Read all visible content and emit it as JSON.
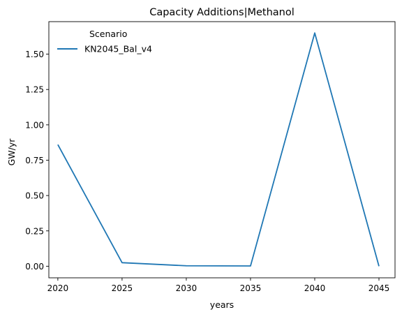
{
  "chart_data": {
    "type": "line",
    "title": "Capacity Additions|Methanol",
    "xlabel": "years",
    "ylabel": "GW/yr",
    "x": [
      2020,
      2025,
      2030,
      2035,
      2040,
      2045
    ],
    "xlim": [
      2019.3,
      2046.25
    ],
    "ylim": [
      -0.082,
      1.73
    ],
    "x_ticks": [
      "2020",
      "2025",
      "2030",
      "2035",
      "2040",
      "2045"
    ],
    "y_ticks": [
      "0.00",
      "0.25",
      "0.50",
      "0.75",
      "1.00",
      "1.25",
      "1.50"
    ],
    "grid": false,
    "legend": {
      "title": "Scenario",
      "position": "top-left"
    },
    "series": [
      {
        "name": "KN2045_Bal_v4",
        "color": "#1f77b4",
        "values": [
          0.86,
          0.025,
          0.003,
          0.002,
          1.65,
          0.0
        ]
      }
    ]
  }
}
